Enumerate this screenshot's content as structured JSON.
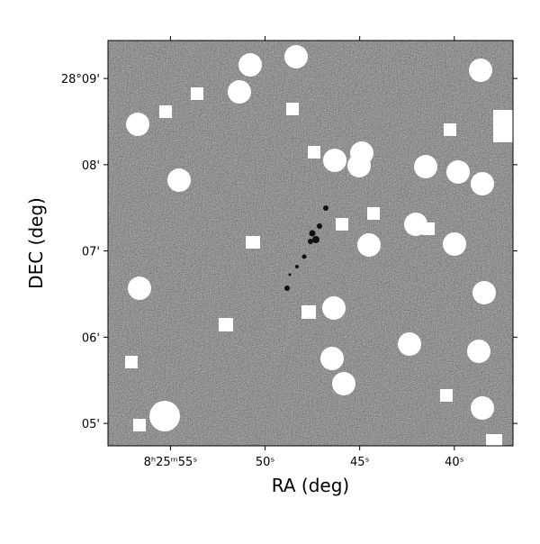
{
  "chart_data": {
    "type": "image",
    "xlabel": "RA (deg)",
    "ylabel": "DEC (deg)",
    "xlim": [
      58.3,
      36.9
    ],
    "ylim": [
      4.74,
      9.44
    ],
    "xticks": [
      {
        "value": 55,
        "label": "8ʰ25ᵐ55ˢ"
      },
      {
        "value": 50,
        "label": "50ˢ"
      },
      {
        "value": 45,
        "label": "45ˢ"
      },
      {
        "value": 40,
        "label": "40ˢ"
      }
    ],
    "yticks": [
      {
        "value": 9,
        "label": "28°09'"
      },
      {
        "value": 8,
        "label": "08'"
      },
      {
        "value": 7,
        "label": "07'"
      },
      {
        "value": 6,
        "label": "06'"
      },
      {
        "value": 5,
        "label": "05'"
      }
    ]
  }
}
